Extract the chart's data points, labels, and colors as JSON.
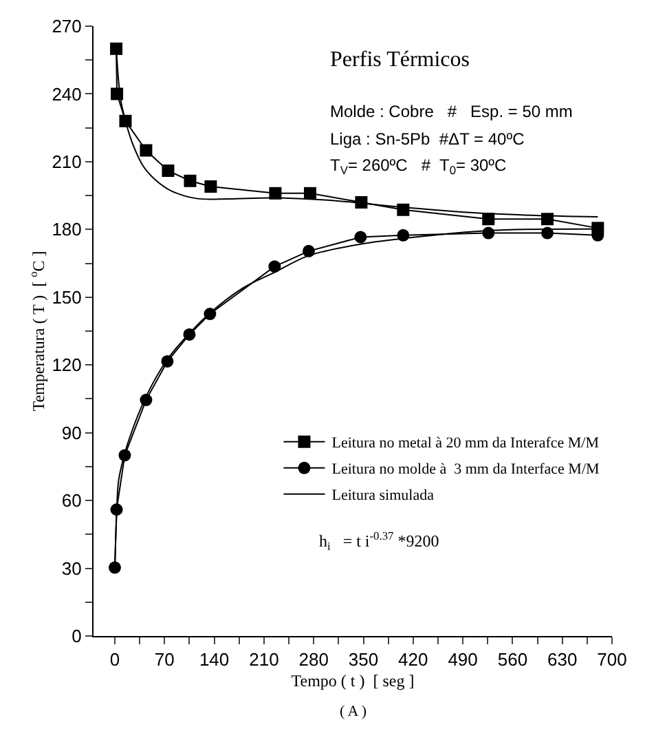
{
  "chart_data": {
    "type": "line",
    "title": "Perfis Térmicos",
    "xlabel": "Tempo ( t )  [ seg ]",
    "ylabel": "Temperatura ( T )  [ $^{o}$C ]",
    "annotations": [
      "Molde : Cobre   #   Esp. = 50 mm",
      "Liga : Sn-5Pb  #ΔT = 40ºC",
      "T$_{V}$= 260ºC   #  T$_{0}$= 30ºC",
      "h$_{i}$   = t i$^{-0.37}$ *9200",
      "( A )"
    ],
    "xlim": [
      -30,
      700
    ],
    "ylim": [
      0,
      270
    ],
    "xticks": [
      0,
      {
        "value": 35,
        "label": null
      },
      70,
      {
        "value": 105,
        "label": null
      },
      140,
      {
        "value": 175,
        "label": null
      },
      210,
      {
        "value": 245,
        "label": null
      },
      280,
      {
        "value": 315,
        "label": null
      },
      350,
      {
        "value": 385,
        "label": null
      },
      420,
      {
        "value": 455,
        "label": null
      },
      490,
      {
        "value": 525,
        "label": null
      },
      560,
      {
        "value": 595,
        "label": null
      },
      630,
      {
        "value": 665,
        "label": null
      },
      700
    ],
    "yticks": [
      0,
      {
        "value": 15,
        "label": null
      },
      30,
      {
        "value": 45,
        "label": null
      },
      60,
      {
        "value": 75,
        "label": null
      },
      90,
      {
        "value": 105,
        "label": null
      },
      120,
      {
        "value": 135,
        "label": null
      },
      150,
      {
        "value": 165,
        "label": null
      },
      180,
      {
        "value": 195,
        "label": null
      },
      210,
      {
        "value": 225,
        "label": null
      },
      240,
      {
        "value": 255,
        "label": null
      },
      270
    ],
    "legend": "bottom right",
    "line_style": "solid",
    "series": [
      {
        "name": "Leitura no metal à 20 mm da Interafce M/M",
        "color": "#000000",
        "marker": "square",
        "x": [
          2,
          3,
          15,
          44,
          75,
          106,
          135,
          226,
          275,
          347,
          406,
          526,
          609,
          680
        ],
        "values": [
          260,
          240,
          228,
          215,
          206,
          201.5,
          199,
          196,
          196,
          192,
          188.7,
          184.6,
          184.6,
          180.6
        ]
      },
      {
        "name": "Leitura no molde à  3 mm da Interface M/M",
        "color": "#000000",
        "marker": "circle",
        "x": [
          0,
          2.5,
          14,
          44,
          74,
          105,
          134,
          225,
          273,
          346,
          406,
          526,
          609,
          680
        ],
        "values": [
          30.3,
          56,
          80,
          104.5,
          121.6,
          133.5,
          142.6,
          163.6,
          170.4,
          176.6,
          177.4,
          178.4,
          178.4,
          177.4
        ]
      },
      {
        "name": "Leitura simulada",
        "color": "#000000",
        "marker": "none",
        "x": [
          2,
          8,
          15,
          25,
          40,
          57,
          80,
          115,
          160,
          220,
          300,
          400,
          526,
          680
        ],
        "values": [
          260,
          238,
          228,
          218,
          208,
          202,
          197,
          193.7,
          193.5,
          194,
          193,
          190,
          187,
          185.6
        ]
      },
      {
        "color": "#000000",
        "marker": "none",
        "x": [
          0,
          2,
          5,
          10,
          20,
          44,
          74,
          105,
          134,
          180,
          225,
          273,
          346,
          406,
          526,
          680
        ],
        "values": [
          30,
          50,
          68,
          76,
          87,
          106,
          122.5,
          134,
          143,
          154,
          161,
          168.4,
          173.5,
          176,
          179.5,
          180.2
        ]
      }
    ]
  }
}
